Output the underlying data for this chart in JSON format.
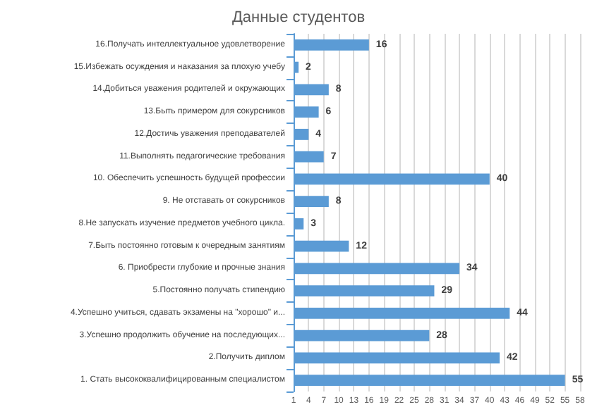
{
  "chart_data": {
    "type": "bar",
    "orientation": "horizontal",
    "title": "Данные студентов",
    "categories": [
      "16.Получать интеллектуальное удовлетворение",
      "15.Избежать осуждения и наказания за плохую учебу",
      "14.Добиться уважения родителей и окружающих",
      "13.Быть примером для сокурсников",
      "12.Достичь уважения преподавателей",
      "11.Выполнять педагогические требования",
      "10. Обеспечить успешность будущей профессии",
      "9. Не отставать от сокурсников",
      "8.Не запускать изучение предметов учебного цикла.",
      "7.Быть постоянно готовым к очередным занятиям",
      "6. Приобрести глубокие и прочные знания",
      "5.Постоянно получать стипендию",
      "4.Успешно учиться, сдавать экзамены на \"хорошо\" и...",
      "3.Успешно продолжить обучение на последующих...",
      "2.Получить диплом",
      "1. Стать высококвалифицированным специалистом"
    ],
    "values": [
      16,
      2,
      8,
      6,
      4,
      7,
      40,
      8,
      3,
      12,
      34,
      29,
      44,
      28,
      42,
      55
    ],
    "color": "#5b9bd5",
    "data_labels": true,
    "grid": "x",
    "xlim": [
      1,
      58
    ],
    "xticks": [
      1,
      4,
      7,
      10,
      13,
      16,
      19,
      22,
      25,
      28,
      31,
      34,
      37,
      40,
      43,
      46,
      49,
      52,
      55,
      58
    ]
  }
}
